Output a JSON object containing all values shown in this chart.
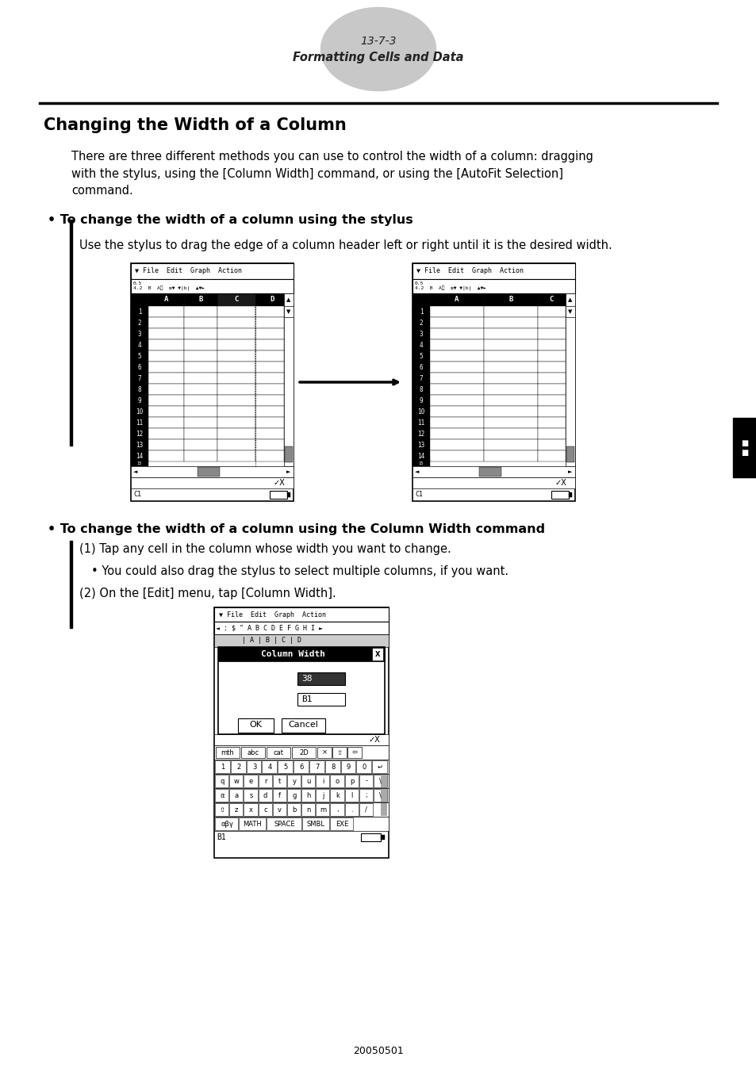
{
  "page_number": "13-7-3",
  "page_subtitle": "Formatting Cells and Data",
  "title": "Changing the Width of a Column",
  "intro_text": "There are three different methods you can use to control the width of a column: dragging\nwith the stylus, using the [Column Width] command, or using the [AutoFit Selection]\ncommand.",
  "section1_bullet": "• To change the width of a column using the stylus",
  "section1_indent_text": "Use the stylus to drag the edge of a column header left or right until it is the desired width.",
  "section2_bullet": "• To change the width of a column using the Column Width command",
  "section2_step1": "(1) Tap any cell in the column whose width you want to change.",
  "section2_step1b": "• You could also drag the stylus to select multiple columns, if you want.",
  "section2_step2": "(2) On the [Edit] menu, tap [Column Width].",
  "footer": "20050501",
  "bg_color": "#ffffff",
  "text_color": "#000000"
}
